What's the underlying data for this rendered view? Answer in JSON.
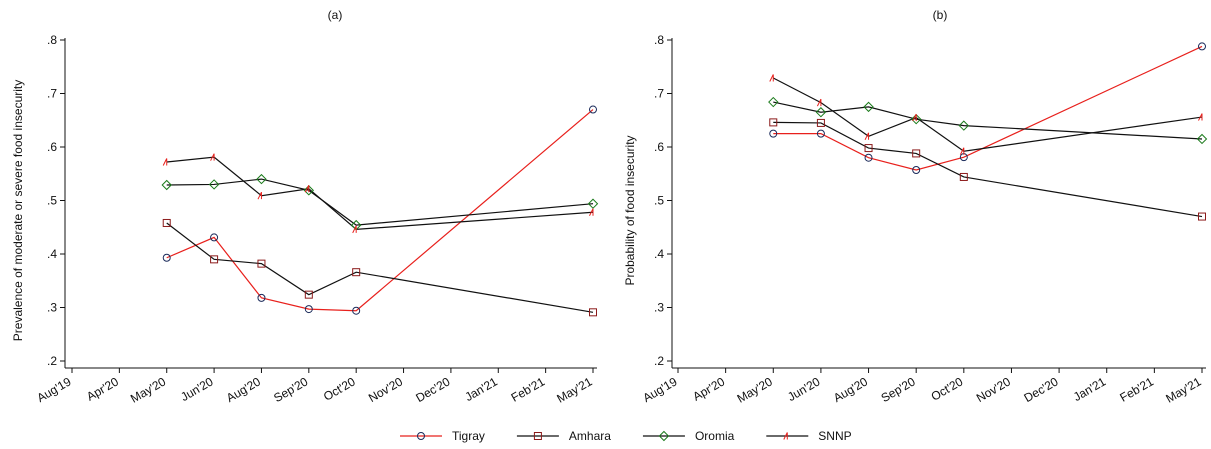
{
  "chart_data": [
    {
      "type": "line",
      "title": "(a)",
      "y_label": "Prevalence of moderate or severe food insecurity",
      "categories": [
        "Aug'19",
        "Apr'20",
        "May'20",
        "Jun'20",
        "Aug'20",
        "Sep'20",
        "Oct'20",
        "Nov'20",
        "Dec'20",
        "Jan'21",
        "Feb'21",
        "May'21"
      ],
      "x": [
        "May'20",
        "Jun'20",
        "Aug'20",
        "Sep'20",
        "Oct'20",
        "May'21"
      ],
      "ylim": [
        0.2,
        0.8
      ],
      "yticks": [
        {
          "value": 0.2,
          "label": ".2"
        },
        {
          "value": 0.3,
          "label": ".3"
        },
        {
          "value": 0.4,
          "label": ".4"
        },
        {
          "value": 0.5,
          "label": ".5"
        },
        {
          "value": 0.6,
          "label": ".6"
        },
        {
          "value": 0.7,
          "label": ".7"
        },
        {
          "value": 0.8,
          "label": ".8"
        }
      ],
      "series": [
        {
          "name": "Tigray",
          "color": "#e8201c",
          "marker": "circle",
          "marker_color": "#1a2a5a",
          "values": [
            0.393,
            0.431,
            0.318,
            0.297,
            0.294,
            0.67
          ]
        },
        {
          "name": "Amhara",
          "color": "#111111",
          "marker": "square",
          "marker_color": "#8b1a1a",
          "values": [
            0.458,
            0.39,
            0.382,
            0.324,
            0.366,
            0.291
          ]
        },
        {
          "name": "Oromia",
          "color": "#111111",
          "marker": "diamond",
          "marker_color": "#1a7a1a",
          "values": [
            0.529,
            0.53,
            0.54,
            0.519,
            0.454,
            0.494
          ]
        },
        {
          "name": "SNNP",
          "color": "#111111",
          "marker": "triangle",
          "marker_color": "#e8201c",
          "values": [
            0.572,
            0.581,
            0.509,
            0.522,
            0.446,
            0.478
          ]
        }
      ]
    },
    {
      "type": "line",
      "title": "(b)",
      "y_label": "Probability of food insecurity",
      "categories": [
        "Aug'19",
        "Apr'20",
        "May'20",
        "Jun'20",
        "Aug'20",
        "Sep'20",
        "Oct'20",
        "Nov'20",
        "Dec'20",
        "Jan'21",
        "Feb'21",
        "May'21"
      ],
      "x": [
        "May'20",
        "Jun'20",
        "Aug'20",
        "Sep'20",
        "Oct'20",
        "May'21"
      ],
      "ylim": [
        0.2,
        0.8
      ],
      "yticks": [
        {
          "value": 0.2,
          "label": ".2"
        },
        {
          "value": 0.3,
          "label": ".3"
        },
        {
          "value": 0.4,
          "label": ".4"
        },
        {
          "value": 0.5,
          "label": ".5"
        },
        {
          "value": 0.6,
          "label": ".6"
        },
        {
          "value": 0.7,
          "label": ".7"
        },
        {
          "value": 0.8,
          "label": ".8"
        }
      ],
      "series": [
        {
          "color": "#e8201c",
          "marker": "circle",
          "marker_color": "#1a2a5a",
          "values": [
            0.625,
            0.625,
            0.58,
            0.557,
            0.581,
            0.788
          ]
        },
        {
          "color": "#111111",
          "marker": "square",
          "marker_color": "#8b1a1a",
          "values": [
            0.646,
            0.645,
            0.598,
            0.588,
            0.544,
            0.47
          ]
        },
        {
          "color": "#111111",
          "marker": "diamond",
          "marker_color": "#1a7a1a",
          "values": [
            0.684,
            0.665,
            0.675,
            0.652,
            0.64,
            0.615
          ]
        },
        {
          "color": "#111111",
          "marker": "triangle",
          "marker_color": "#e8201c",
          "values": [
            0.729,
            0.683,
            0.62,
            0.655,
            0.592,
            0.656
          ]
        }
      ]
    }
  ]
}
